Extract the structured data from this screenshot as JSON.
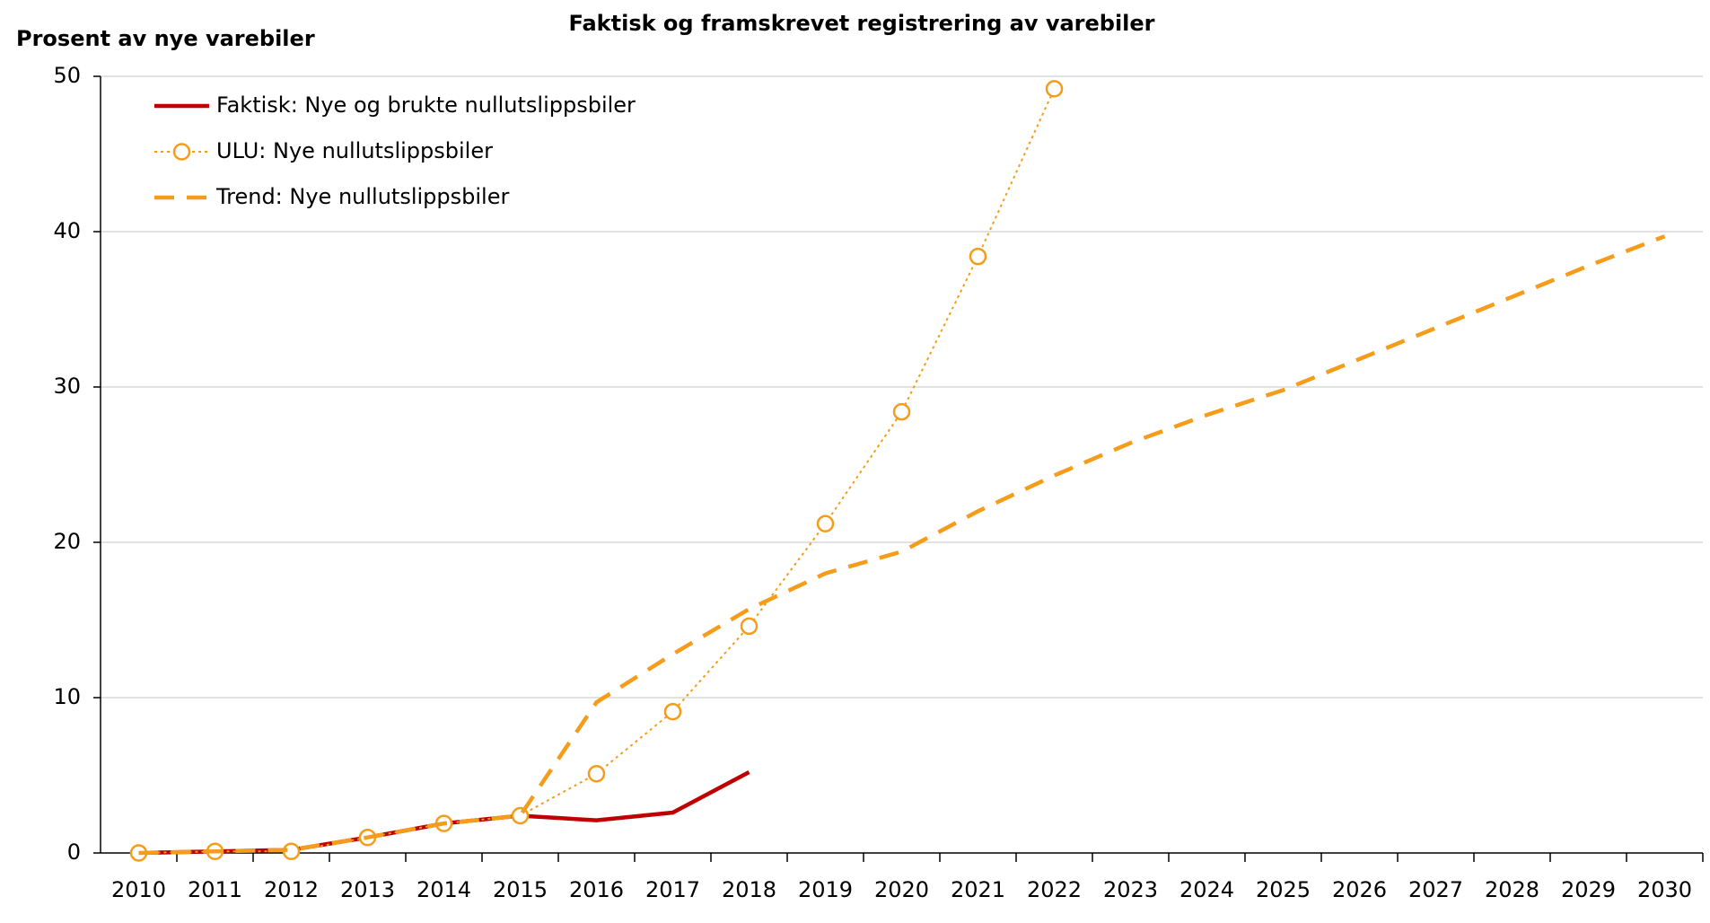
{
  "chart_data": {
    "type": "line",
    "title": "Faktisk og framskrevet registrering av varebiler",
    "y_label": "Prosent av nye varebiler",
    "categories": [
      "2010",
      "2011",
      "2012",
      "2013",
      "2014",
      "2015",
      "2016",
      "2017",
      "2018",
      "2019",
      "2020",
      "2021",
      "2022",
      "2023",
      "2024",
      "2025",
      "2026",
      "2027",
      "2028",
      "2029",
      "2030"
    ],
    "series": [
      {
        "name": "Faktisk: Nye og brukte nullutslippsbiler",
        "color": "#c00000",
        "line_style": "solid",
        "marker": "none",
        "values": [
          0,
          0.1,
          0.2,
          1.0,
          1.9,
          2.4,
          2.1,
          2.6,
          5.2,
          null,
          null,
          null,
          null,
          null,
          null,
          null,
          null,
          null,
          null,
          null,
          null
        ]
      },
      {
        "name": "ULU: Nye nullutslippsbiler",
        "color": "#f59c1a",
        "line_style": "dotted",
        "marker": "circle",
        "values": [
          0,
          0.1,
          0.1,
          1.0,
          1.9,
          2.4,
          5.1,
          9.1,
          14.6,
          21.2,
          28.4,
          38.4,
          49.2,
          null,
          null,
          null,
          null,
          null,
          null,
          null,
          null
        ]
      },
      {
        "name": "Trend: Nye nullutslippsbiler",
        "color": "#f59c1a",
        "line_style": "dashed",
        "marker": "none",
        "values": [
          0,
          0.1,
          0.2,
          1.0,
          1.9,
          2.4,
          9.7,
          12.8,
          15.7,
          18.0,
          19.4,
          22.0,
          24.3,
          26.4,
          28.2,
          29.8,
          31.8,
          33.8,
          35.8,
          37.8,
          39.7
        ]
      }
    ],
    "ylim": [
      0,
      50
    ],
    "yticks": [
      0,
      10,
      20,
      30,
      40,
      50
    ],
    "grid": true,
    "legend": "top-left"
  }
}
